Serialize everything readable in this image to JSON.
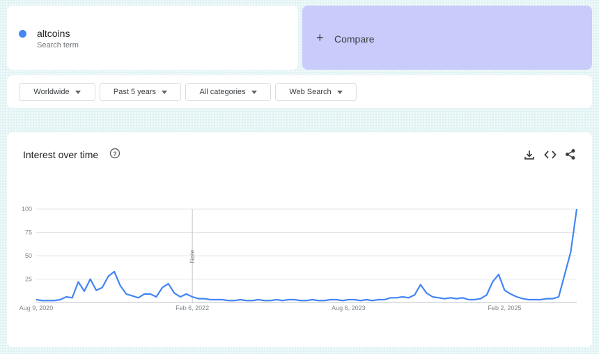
{
  "search": {
    "term": "altcoins",
    "term_caption": "Search term",
    "compare": "Compare"
  },
  "filters": [
    "Worldwide",
    "Past 5 years",
    "All categories",
    "Web Search"
  ],
  "panel": {
    "title": "Interest over time"
  },
  "chart_data": {
    "type": "line",
    "annotation": "Note",
    "categories": [
      "Aug 9, 2020",
      null,
      null,
      null,
      null,
      null,
      null,
      null,
      null,
      null,
      null,
      null,
      null,
      null,
      null,
      null,
      null,
      null,
      null,
      null,
      null,
      null,
      null,
      null,
      null,
      null,
      "Feb 6, 2022",
      null,
      null,
      null,
      null,
      null,
      null,
      null,
      null,
      null,
      null,
      null,
      null,
      null,
      null,
      null,
      null,
      null,
      null,
      null,
      null,
      null,
      null,
      null,
      null,
      null,
      "Aug 6, 2023",
      null,
      null,
      null,
      null,
      null,
      null,
      null,
      null,
      null,
      null,
      null,
      null,
      null,
      null,
      null,
      null,
      null,
      null,
      null,
      null,
      null,
      null,
      null,
      null,
      null,
      "Feb 2, 2025",
      null,
      null,
      null,
      null,
      null,
      null,
      null,
      null,
      null,
      null,
      null,
      null
    ],
    "series": [
      {
        "name": "altcoins",
        "color": "#4285f4",
        "values": [
          3,
          2,
          2,
          2,
          3,
          6,
          5,
          22,
          12,
          25,
          13,
          16,
          28,
          33,
          18,
          9,
          7,
          5,
          9,
          9,
          6,
          16,
          20,
          10,
          6,
          9,
          6,
          4,
          4,
          3,
          3,
          3,
          2,
          2,
          3,
          2,
          2,
          3,
          2,
          2,
          3,
          2,
          3,
          3,
          2,
          2,
          3,
          2,
          2,
          3,
          3,
          2,
          3,
          3,
          2,
          3,
          2,
          3,
          3,
          5,
          5,
          6,
          5,
          8,
          19,
          10,
          6,
          5,
          4,
          5,
          4,
          5,
          3,
          3,
          4,
          8,
          22,
          30,
          13,
          9,
          6,
          4,
          3,
          3,
          3,
          4,
          4,
          6,
          30,
          54,
          100
        ]
      }
    ],
    "ylim": [
      0,
      100
    ],
    "yticks": [
      25,
      50,
      75,
      100
    ],
    "grid": true
  }
}
